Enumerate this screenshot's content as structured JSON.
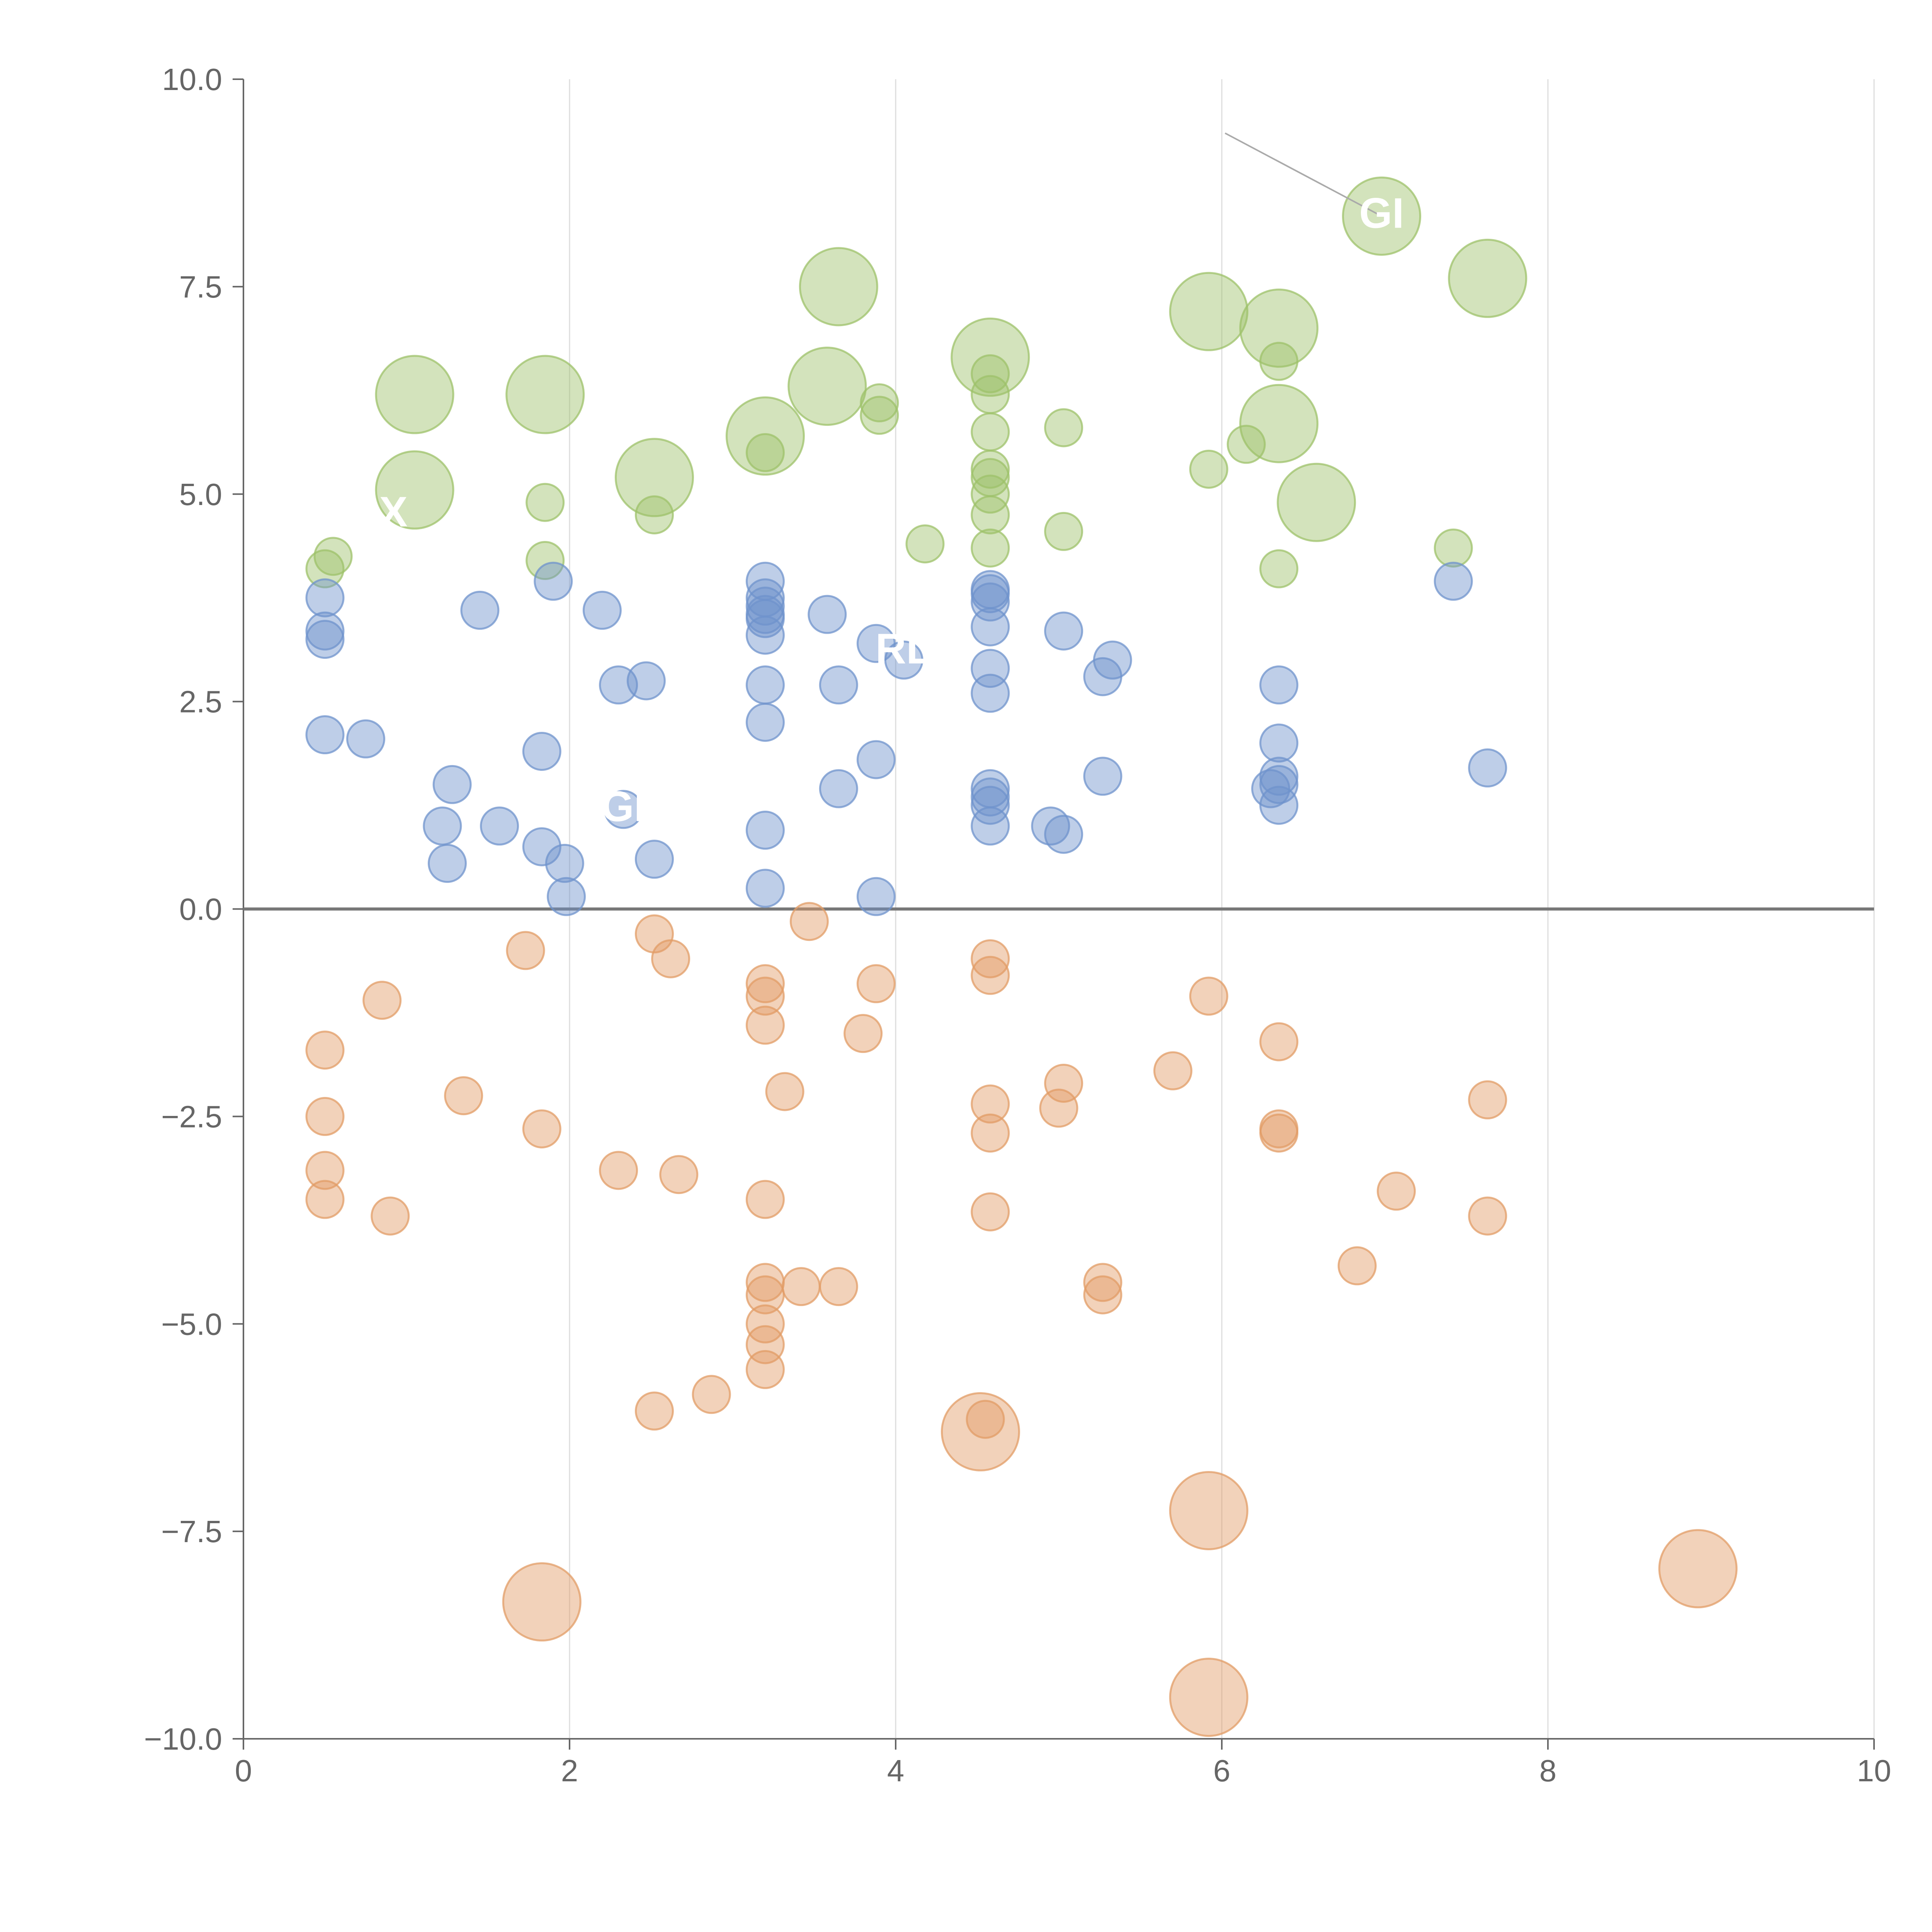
{
  "chart_data": {
    "type": "scatter",
    "title": "",
    "xlabel": "",
    "ylabel": "",
    "xlim": [
      0,
      10
    ],
    "ylim": [
      -10,
      10
    ],
    "x_ticks": [
      0,
      2,
      4,
      6,
      8,
      10
    ],
    "x_tick_labels": [
      "0",
      "2",
      "4",
      "6",
      "8",
      "10"
    ],
    "y_ticks": [
      10,
      7.5,
      5,
      2.5,
      0,
      -2.5,
      -5,
      -7.5,
      -10
    ],
    "y_tick_labels": [
      "10.0",
      "7.5",
      "5.0",
      "2.5",
      "0.0",
      "−2.5",
      "−5.0",
      "−7.5",
      "−10.0"
    ],
    "vertical_grid": true,
    "horizontal_grid": false,
    "zero_line": true,
    "legend": "none",
    "colors": {
      "green": "#9dc16a",
      "blue": "#6f93cc",
      "orange": "#e29c66",
      "axis": "#666666",
      "grid": "#dddddd",
      "zero_line": "#777777"
    },
    "series": [
      {
        "color": "green",
        "points": [
          [
            0.5,
            4.1,
            1
          ],
          [
            0.55,
            4.25,
            1
          ],
          [
            1.05,
            5.05,
            2
          ],
          [
            1.05,
            6.2,
            2
          ],
          [
            1.85,
            6.2,
            2
          ],
          [
            1.85,
            4.9,
            1
          ],
          [
            1.85,
            4.2,
            1
          ],
          [
            2.52,
            5.2,
            2
          ],
          [
            2.52,
            4.75,
            1
          ],
          [
            3.2,
            5.7,
            2
          ],
          [
            3.2,
            5.5,
            1
          ],
          [
            3.58,
            6.3,
            2
          ],
          [
            3.65,
            7.5,
            2
          ],
          [
            3.9,
            6.1,
            1
          ],
          [
            3.9,
            5.95,
            1
          ],
          [
            4.18,
            4.4,
            1
          ],
          [
            4.58,
            6.65,
            2
          ],
          [
            4.58,
            6.45,
            1
          ],
          [
            4.58,
            6.2,
            1
          ],
          [
            4.58,
            5.75,
            1
          ],
          [
            4.58,
            5.3,
            1
          ],
          [
            4.58,
            5.2,
            1
          ],
          [
            4.58,
            5.0,
            1
          ],
          [
            4.58,
            4.75,
            1
          ],
          [
            4.58,
            4.35,
            1
          ],
          [
            5.03,
            5.8,
            1
          ],
          [
            5.03,
            4.55,
            1
          ],
          [
            5.92,
            7.2,
            2
          ],
          [
            5.92,
            5.3,
            1
          ],
          [
            6.15,
            5.6,
            1
          ],
          [
            6.35,
            7.0,
            2
          ],
          [
            6.35,
            6.6,
            1
          ],
          [
            6.35,
            5.85,
            2
          ],
          [
            6.35,
            4.1,
            1
          ],
          [
            6.58,
            4.9,
            2
          ],
          [
            6.98,
            8.35,
            2
          ],
          [
            7.42,
            4.35,
            1
          ],
          [
            7.63,
            7.6,
            2
          ]
        ]
      },
      {
        "color": "blue",
        "points": [
          [
            0.5,
            3.75,
            1
          ],
          [
            0.5,
            3.35,
            1
          ],
          [
            0.5,
            3.25,
            1
          ],
          [
            0.5,
            2.1,
            1
          ],
          [
            0.75,
            2.05,
            1
          ],
          [
            1.22,
            1.0,
            1
          ],
          [
            1.25,
            0.55,
            1
          ],
          [
            1.28,
            1.5,
            1
          ],
          [
            1.45,
            3.6,
            1
          ],
          [
            1.57,
            1.0,
            1
          ],
          [
            1.83,
            0.75,
            1
          ],
          [
            1.83,
            1.9,
            1
          ],
          [
            1.9,
            3.95,
            1
          ],
          [
            1.97,
            0.55,
            1
          ],
          [
            1.98,
            0.15,
            1
          ],
          [
            2.2,
            3.6,
            1
          ],
          [
            2.3,
            2.7,
            1
          ],
          [
            2.33,
            1.2,
            1
          ],
          [
            2.47,
            2.75,
            1
          ],
          [
            2.52,
            0.6,
            1
          ],
          [
            3.2,
            3.95,
            1
          ],
          [
            3.2,
            3.75,
            1
          ],
          [
            3.2,
            3.65,
            1
          ],
          [
            3.2,
            3.55,
            1
          ],
          [
            3.2,
            3.5,
            1
          ],
          [
            3.2,
            3.3,
            1
          ],
          [
            3.2,
            2.7,
            1
          ],
          [
            3.2,
            2.25,
            1
          ],
          [
            3.2,
            0.95,
            1
          ],
          [
            3.2,
            0.25,
            1
          ],
          [
            3.58,
            3.55,
            1
          ],
          [
            3.65,
            2.7,
            1
          ],
          [
            3.65,
            1.45,
            1
          ],
          [
            3.88,
            3.2,
            1
          ],
          [
            3.88,
            1.8,
            1
          ],
          [
            3.88,
            0.15,
            1
          ],
          [
            4.05,
            3.0,
            1
          ],
          [
            4.58,
            3.85,
            1
          ],
          [
            4.58,
            3.8,
            1
          ],
          [
            4.58,
            3.7,
            1
          ],
          [
            4.58,
            3.4,
            1
          ],
          [
            4.58,
            2.9,
            1
          ],
          [
            4.58,
            2.6,
            1
          ],
          [
            4.58,
            1.45,
            1
          ],
          [
            4.58,
            1.35,
            1
          ],
          [
            4.58,
            1.25,
            1
          ],
          [
            4.58,
            1.0,
            1
          ],
          [
            4.95,
            1.0,
            1
          ],
          [
            5.03,
            0.9,
            1
          ],
          [
            5.03,
            3.35,
            1
          ],
          [
            5.27,
            2.8,
            1
          ],
          [
            5.27,
            1.6,
            1
          ],
          [
            5.33,
            3.0,
            1
          ],
          [
            6.3,
            1.45,
            1
          ],
          [
            6.35,
            2.7,
            1
          ],
          [
            6.35,
            2.0,
            1
          ],
          [
            6.35,
            1.6,
            1
          ],
          [
            6.35,
            1.5,
            1
          ],
          [
            6.35,
            1.25,
            1
          ],
          [
            7.42,
            3.95,
            1
          ],
          [
            7.63,
            1.7,
            1
          ]
        ]
      },
      {
        "color": "orange",
        "points": [
          [
            0.5,
            -1.7,
            1
          ],
          [
            0.5,
            -2.5,
            1
          ],
          [
            0.5,
            -3.15,
            1
          ],
          [
            0.5,
            -3.5,
            1
          ],
          [
            0.85,
            -1.1,
            1
          ],
          [
            0.9,
            -3.7,
            1
          ],
          [
            1.35,
            -2.25,
            1
          ],
          [
            1.73,
            -0.5,
            1
          ],
          [
            1.83,
            -2.65,
            1
          ],
          [
            1.83,
            -8.35,
            2
          ],
          [
            2.3,
            -3.15,
            1
          ],
          [
            2.52,
            -0.3,
            1
          ],
          [
            2.52,
            -6.05,
            1
          ],
          [
            2.62,
            -0.6,
            1
          ],
          [
            2.67,
            -3.2,
            1
          ],
          [
            2.87,
            -5.85,
            1
          ],
          [
            3.2,
            -0.9,
            1
          ],
          [
            3.2,
            -1.05,
            1
          ],
          [
            3.2,
            -1.4,
            1
          ],
          [
            3.2,
            -3.5,
            1
          ],
          [
            3.2,
            -4.5,
            1
          ],
          [
            3.2,
            -4.65,
            1
          ],
          [
            3.2,
            -5.0,
            1
          ],
          [
            3.2,
            -5.25,
            1
          ],
          [
            3.2,
            -5.55,
            1
          ],
          [
            3.32,
            -2.2,
            1
          ],
          [
            3.42,
            -4.55,
            1
          ],
          [
            3.47,
            -0.15,
            1
          ],
          [
            3.65,
            -4.55,
            1
          ],
          [
            3.8,
            -1.5,
            1
          ],
          [
            3.88,
            -0.9,
            1
          ],
          [
            4.52,
            -6.3,
            2
          ],
          [
            4.55,
            -6.15,
            1
          ],
          [
            4.58,
            -0.6,
            1
          ],
          [
            4.58,
            -0.8,
            1
          ],
          [
            4.58,
            -2.35,
            1
          ],
          [
            4.58,
            -2.7,
            1
          ],
          [
            4.58,
            -3.65,
            1
          ],
          [
            5.0,
            -2.4,
            1
          ],
          [
            5.03,
            -2.1,
            1
          ],
          [
            5.27,
            -4.5,
            1
          ],
          [
            5.27,
            -4.65,
            1
          ],
          [
            5.7,
            -1.95,
            1
          ],
          [
            5.92,
            -1.05,
            1
          ],
          [
            5.92,
            -7.25,
            2
          ],
          [
            5.92,
            -9.5,
            2
          ],
          [
            6.35,
            -1.6,
            1
          ],
          [
            6.35,
            -2.65,
            1
          ],
          [
            6.35,
            -2.7,
            1
          ],
          [
            6.83,
            -4.3,
            1
          ],
          [
            7.07,
            -3.4,
            1
          ],
          [
            7.63,
            -2.3,
            1
          ],
          [
            7.63,
            -3.7,
            1
          ],
          [
            8.92,
            -7.95,
            2
          ]
        ]
      }
    ],
    "annotations": [
      {
        "text": "GI",
        "x": 6.98,
        "y": 8.35,
        "line_from": [
          6.02,
          9.35
        ]
      },
      {
        "text": "RL",
        "x": 4.05,
        "y": 3.1
      },
      {
        "text": "GI",
        "x": 2.33,
        "y": 1.2
      },
      {
        "text": "X",
        "x": 0.92,
        "y": 4.75
      }
    ]
  }
}
